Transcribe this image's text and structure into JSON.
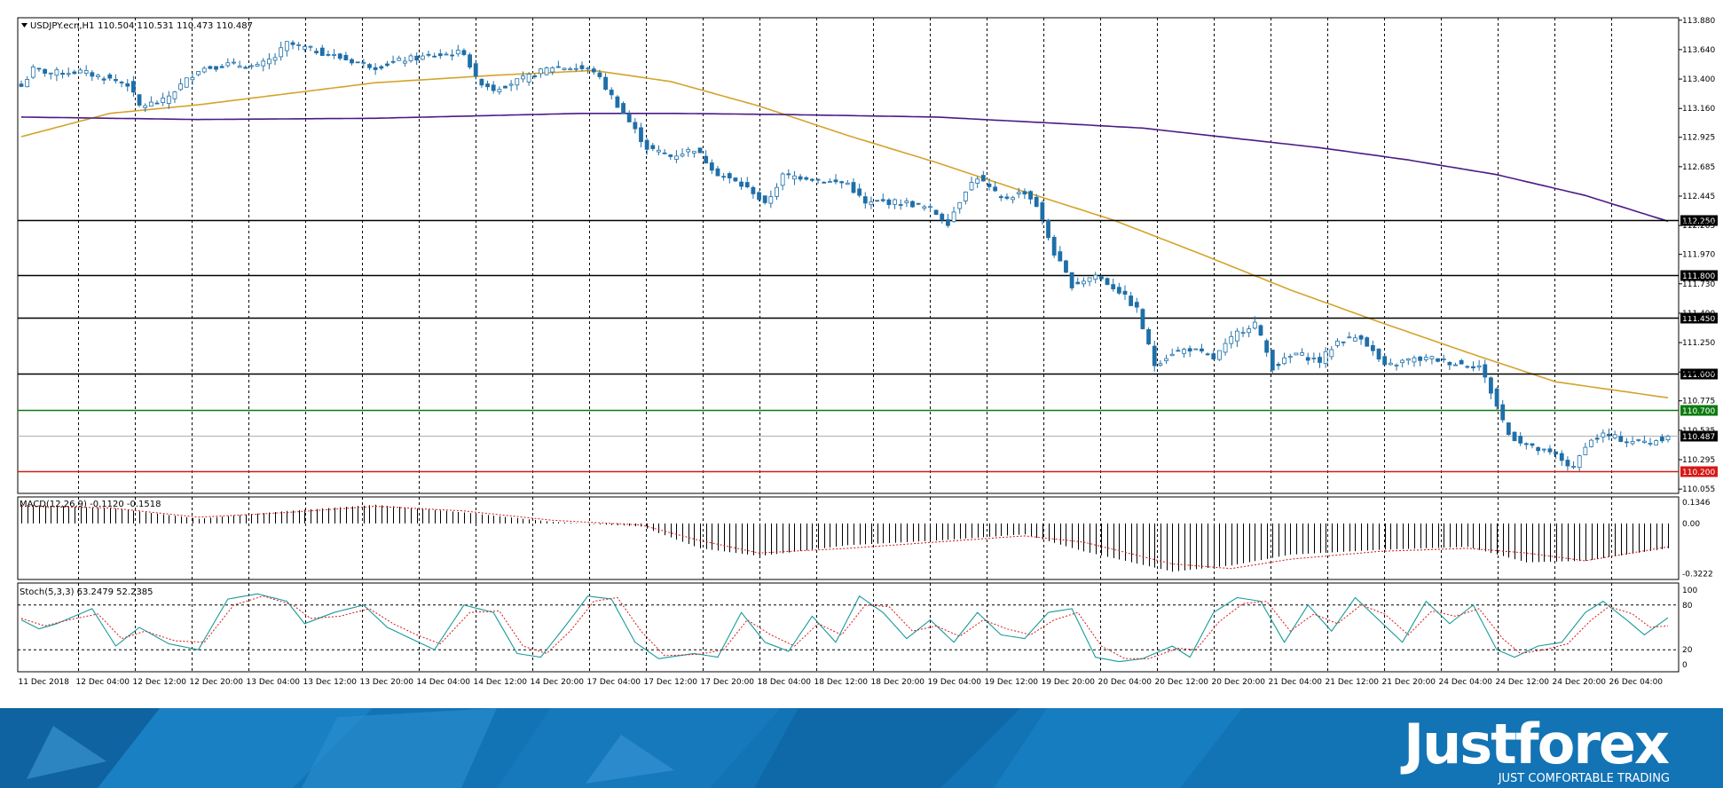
{
  "chart_data": {
    "type": "candlestick",
    "symbol_header": "USDJPY.ecn,H1",
    "ohlc_header": "110.504 110.531 110.473 110.487",
    "x_tick_labels": [
      "11 Dec 2018",
      "12 Dec 04:00",
      "12 Dec 12:00",
      "12 Dec 20:00",
      "13 Dec 04:00",
      "13 Dec 12:00",
      "13 Dec 20:00",
      "14 Dec 04:00",
      "14 Dec 12:00",
      "14 Dec 20:00",
      "17 Dec 04:00",
      "17 Dec 12:00",
      "17 Dec 20:00",
      "18 Dec 04:00",
      "18 Dec 12:00",
      "18 Dec 20:00",
      "19 Dec 04:00",
      "19 Dec 12:00",
      "19 Dec 20:00",
      "20 Dec 04:00",
      "20 Dec 12:00",
      "20 Dec 20:00",
      "21 Dec 04:00",
      "21 Dec 12:00",
      "21 Dec 20:00",
      "24 Dec 04:00",
      "24 Dec 12:00",
      "24 Dec 20:00",
      "26 Dec 04:00"
    ],
    "y_tick_labels": [
      "113.880",
      "113.640",
      "113.400",
      "113.160",
      "112.925",
      "112.685",
      "112.445",
      "112.205",
      "111.970",
      "111.730",
      "111.490",
      "111.250",
      "111.010",
      "110.775",
      "110.535",
      "110.295",
      "110.055"
    ],
    "ylim": [
      110.02,
      113.9
    ],
    "candle_anchors": [
      [
        0,
        113.34
      ],
      [
        2,
        113.48
      ],
      [
        5,
        113.45
      ],
      [
        10,
        113.46
      ],
      [
        15,
        113.4
      ],
      [
        18,
        113.36
      ],
      [
        20,
        113.18
      ],
      [
        24,
        113.22
      ],
      [
        27,
        113.35
      ],
      [
        30,
        113.48
      ],
      [
        35,
        113.52
      ],
      [
        40,
        113.5
      ],
      [
        43,
        113.58
      ],
      [
        45,
        113.69
      ],
      [
        50,
        113.63
      ],
      [
        55,
        113.56
      ],
      [
        60,
        113.5
      ],
      [
        65,
        113.56
      ],
      [
        70,
        113.59
      ],
      [
        75,
        113.62
      ],
      [
        77,
        113.4
      ],
      [
        80,
        113.32
      ],
      [
        85,
        113.4
      ],
      [
        90,
        113.5
      ],
      [
        94,
        113.49
      ],
      [
        97,
        113.47
      ],
      [
        102,
        113.12
      ],
      [
        106,
        112.84
      ],
      [
        110,
        112.77
      ],
      [
        114,
        112.83
      ],
      [
        118,
        112.63
      ],
      [
        121,
        112.56
      ],
      [
        124,
        112.48
      ],
      [
        126,
        112.37
      ],
      [
        129,
        112.61
      ],
      [
        133,
        112.6
      ],
      [
        137,
        112.56
      ],
      [
        140,
        112.55
      ],
      [
        143,
        112.38
      ],
      [
        146,
        112.4
      ],
      [
        150,
        112.39
      ],
      [
        154,
        112.34
      ],
      [
        157,
        112.23
      ],
      [
        160,
        112.5
      ],
      [
        162,
        112.6
      ],
      [
        166,
        112.42
      ],
      [
        170,
        112.48
      ],
      [
        172,
        112.37
      ],
      [
        175,
        111.98
      ],
      [
        178,
        111.72
      ],
      [
        182,
        111.8
      ],
      [
        186,
        111.67
      ],
      [
        189,
        111.52
      ],
      [
        192,
        111.07
      ],
      [
        195,
        111.17
      ],
      [
        198,
        111.2
      ],
      [
        202,
        111.12
      ],
      [
        206,
        111.33
      ],
      [
        209,
        111.41
      ],
      [
        212,
        111.05
      ],
      [
        216,
        111.16
      ],
      [
        220,
        111.1
      ],
      [
        223,
        111.26
      ],
      [
        227,
        111.3
      ],
      [
        231,
        111.05
      ],
      [
        235,
        111.11
      ],
      [
        239,
        111.12
      ],
      [
        243,
        111.08
      ],
      [
        247,
        111.06
      ],
      [
        249,
        110.85
      ],
      [
        252,
        110.5
      ],
      [
        256,
        110.39
      ],
      [
        260,
        110.33
      ],
      [
        263,
        110.22
      ],
      [
        265,
        110.42
      ],
      [
        268,
        110.5
      ],
      [
        272,
        110.45
      ],
      [
        276,
        110.44
      ],
      [
        279,
        110.487
      ]
    ],
    "candle_count": 280,
    "sma50_anchors": [
      [
        0,
        112.93
      ],
      [
        15,
        113.12
      ],
      [
        30,
        113.19
      ],
      [
        60,
        113.37
      ],
      [
        80,
        113.43
      ],
      [
        97,
        113.47
      ],
      [
        110,
        113.38
      ],
      [
        125,
        113.18
      ],
      [
        140,
        112.94
      ],
      [
        155,
        112.72
      ],
      [
        170,
        112.48
      ],
      [
        185,
        112.25
      ],
      [
        200,
        111.97
      ],
      [
        215,
        111.68
      ],
      [
        230,
        111.42
      ],
      [
        245,
        111.17
      ],
      [
        260,
        110.93
      ],
      [
        279,
        110.8
      ]
    ],
    "sma200_anchors": [
      [
        0,
        113.09
      ],
      [
        30,
        113.07
      ],
      [
        60,
        113.08
      ],
      [
        95,
        113.12
      ],
      [
        110,
        113.12
      ],
      [
        130,
        113.11
      ],
      [
        155,
        113.09
      ],
      [
        175,
        113.04
      ],
      [
        190,
        113.0
      ],
      [
        205,
        112.92
      ],
      [
        220,
        112.84
      ],
      [
        235,
        112.74
      ],
      [
        250,
        112.62
      ],
      [
        265,
        112.45
      ],
      [
        279,
        112.24
      ]
    ],
    "horizontal_levels": [
      {
        "price": 112.25,
        "label": "112.250",
        "color": "#000000"
      },
      {
        "price": 111.8,
        "label": "111.800",
        "color": "#000000"
      },
      {
        "price": 111.45,
        "label": "111.450",
        "color": "#000000"
      },
      {
        "price": 111.0,
        "label": "111.000",
        "color": "#000000"
      },
      {
        "price": 110.7,
        "label": "110.700",
        "color": "#0d7a12"
      },
      {
        "price": 110.2,
        "label": "110.200",
        "color": "#d61818"
      }
    ],
    "last_price_label": "110.487",
    "last_price": 110.487,
    "macd": {
      "header": "MACD(12,26,9) -0.1120 -0.1518",
      "y_tick_labels": [
        "0.1346",
        "0.00",
        "-0.3222"
      ],
      "ylim": [
        -0.36,
        0.17
      ],
      "hist_anchors": [
        [
          0,
          0.12
        ],
        [
          15,
          0.1
        ],
        [
          30,
          0.03
        ],
        [
          45,
          0.08
        ],
        [
          60,
          0.12
        ],
        [
          75,
          0.07
        ],
        [
          90,
          0.01
        ],
        [
          105,
          -0.02
        ],
        [
          115,
          -0.16
        ],
        [
          125,
          -0.21
        ],
        [
          140,
          -0.14
        ],
        [
          155,
          -0.11
        ],
        [
          170,
          -0.07
        ],
        [
          180,
          -0.18
        ],
        [
          195,
          -0.31
        ],
        [
          205,
          -0.27
        ],
        [
          215,
          -0.2
        ],
        [
          230,
          -0.17
        ],
        [
          245,
          -0.15
        ],
        [
          255,
          -0.25
        ],
        [
          265,
          -0.24
        ],
        [
          279,
          -0.16
        ]
      ],
      "signal_anchors": [
        [
          0,
          0.11
        ],
        [
          15,
          0.1
        ],
        [
          30,
          0.04
        ],
        [
          45,
          0.07
        ],
        [
          60,
          0.11
        ],
        [
          75,
          0.08
        ],
        [
          90,
          0.02
        ],
        [
          105,
          -0.01
        ],
        [
          115,
          -0.11
        ],
        [
          125,
          -0.19
        ],
        [
          140,
          -0.16
        ],
        [
          155,
          -0.12
        ],
        [
          170,
          -0.08
        ],
        [
          180,
          -0.12
        ],
        [
          195,
          -0.26
        ],
        [
          205,
          -0.29
        ],
        [
          215,
          -0.23
        ],
        [
          230,
          -0.18
        ],
        [
          245,
          -0.16
        ],
        [
          255,
          -0.19
        ],
        [
          265,
          -0.24
        ],
        [
          279,
          -0.15
        ]
      ]
    },
    "stochastic": {
      "header": "Stoch(5,3,3) 63.2479 52.2385",
      "y_tick_labels": [
        "100",
        "80",
        "20",
        "0"
      ],
      "levels": [
        80,
        20
      ],
      "ylim": [
        0,
        100
      ],
      "k_anchors": [
        [
          0,
          60
        ],
        [
          3,
          48
        ],
        [
          6,
          55
        ],
        [
          12,
          75
        ],
        [
          16,
          25
        ],
        [
          20,
          50
        ],
        [
          25,
          28
        ],
        [
          30,
          20
        ],
        [
          35,
          88
        ],
        [
          40,
          95
        ],
        [
          45,
          85
        ],
        [
          48,
          55
        ],
        [
          53,
          70
        ],
        [
          58,
          80
        ],
        [
          62,
          50
        ],
        [
          66,
          35
        ],
        [
          70,
          20
        ],
        [
          75,
          80
        ],
        [
          80,
          70
        ],
        [
          84,
          15
        ],
        [
          88,
          10
        ],
        [
          92,
          50
        ],
        [
          96,
          92
        ],
        [
          100,
          88
        ],
        [
          104,
          30
        ],
        [
          108,
          8
        ],
        [
          114,
          15
        ],
        [
          118,
          10
        ],
        [
          122,
          70
        ],
        [
          126,
          30
        ],
        [
          130,
          18
        ],
        [
          134,
          65
        ],
        [
          138,
          30
        ],
        [
          142,
          92
        ],
        [
          146,
          70
        ],
        [
          150,
          35
        ],
        [
          154,
          60
        ],
        [
          158,
          30
        ],
        [
          162,
          70
        ],
        [
          166,
          40
        ],
        [
          170,
          35
        ],
        [
          174,
          70
        ],
        [
          178,
          75
        ],
        [
          182,
          10
        ],
        [
          186,
          4
        ],
        [
          190,
          8
        ],
        [
          195,
          25
        ],
        [
          198,
          10
        ],
        [
          202,
          70
        ],
        [
          206,
          90
        ],
        [
          210,
          85
        ],
        [
          214,
          30
        ],
        [
          218,
          80
        ],
        [
          222,
          45
        ],
        [
          226,
          90
        ],
        [
          230,
          60
        ],
        [
          234,
          30
        ],
        [
          238,
          85
        ],
        [
          242,
          55
        ],
        [
          246,
          80
        ],
        [
          250,
          20
        ],
        [
          253,
          10
        ],
        [
          257,
          25
        ],
        [
          261,
          30
        ],
        [
          265,
          70
        ],
        [
          268,
          85
        ],
        [
          272,
          60
        ],
        [
          275,
          40
        ],
        [
          279,
          63
        ]
      ],
      "d_anchors": [
        [
          0,
          62
        ],
        [
          4,
          52
        ],
        [
          8,
          60
        ],
        [
          13,
          68
        ],
        [
          17,
          35
        ],
        [
          21,
          45
        ],
        [
          26,
          32
        ],
        [
          31,
          30
        ],
        [
          36,
          80
        ],
        [
          41,
          92
        ],
        [
          46,
          80
        ],
        [
          49,
          62
        ],
        [
          54,
          65
        ],
        [
          59,
          75
        ],
        [
          63,
          55
        ],
        [
          67,
          40
        ],
        [
          71,
          28
        ],
        [
          76,
          70
        ],
        [
          81,
          72
        ],
        [
          85,
          25
        ],
        [
          89,
          15
        ],
        [
          93,
          45
        ],
        [
          97,
          85
        ],
        [
          101,
          90
        ],
        [
          105,
          45
        ],
        [
          109,
          12
        ],
        [
          115,
          14
        ],
        [
          119,
          20
        ],
        [
          123,
          60
        ],
        [
          127,
          40
        ],
        [
          131,
          25
        ],
        [
          135,
          55
        ],
        [
          139,
          40
        ],
        [
          143,
          80
        ],
        [
          147,
          78
        ],
        [
          151,
          45
        ],
        [
          155,
          52
        ],
        [
          159,
          38
        ],
        [
          163,
          60
        ],
        [
          167,
          48
        ],
        [
          171,
          40
        ],
        [
          175,
          60
        ],
        [
          179,
          70
        ],
        [
          183,
          25
        ],
        [
          187,
          8
        ],
        [
          191,
          8
        ],
        [
          196,
          22
        ],
        [
          199,
          20
        ],
        [
          203,
          58
        ],
        [
          207,
          82
        ],
        [
          211,
          85
        ],
        [
          215,
          45
        ],
        [
          219,
          68
        ],
        [
          223,
          55
        ],
        [
          227,
          80
        ],
        [
          231,
          68
        ],
        [
          235,
          40
        ],
        [
          239,
          72
        ],
        [
          243,
          65
        ],
        [
          247,
          75
        ],
        [
          251,
          35
        ],
        [
          254,
          15
        ],
        [
          258,
          20
        ],
        [
          262,
          28
        ],
        [
          266,
          60
        ],
        [
          269,
          78
        ],
        [
          273,
          68
        ],
        [
          276,
          50
        ],
        [
          279,
          52
        ]
      ]
    }
  },
  "branding": {
    "logo": "Justforex",
    "tagline": "JUST COMFORTABLE TRADING",
    "banner_color": "#1273b5"
  }
}
